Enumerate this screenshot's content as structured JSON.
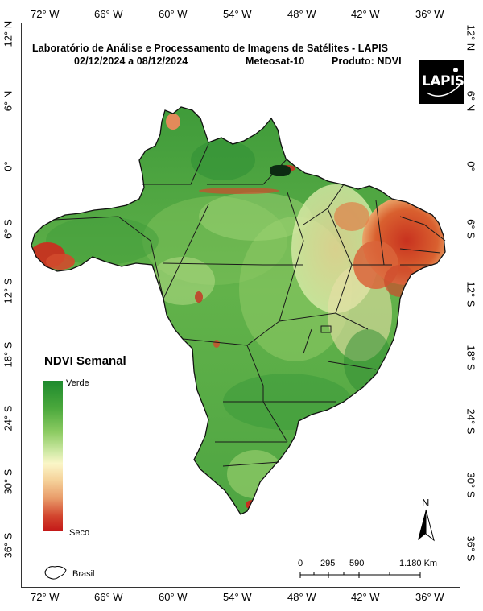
{
  "title": {
    "line1": "Laboratório de Análise e Processamento de Imagens de Satélites - LAPIS",
    "line2_dates": "02/12/2024  a  08/12/2024",
    "line2_sat": "Meteosat-10",
    "line2_product": "Produto: NDVI"
  },
  "logo": {
    "text": "LAPIS"
  },
  "axes": {
    "lon_top": [
      "72° W",
      "66° W",
      "60° W",
      "54° W",
      "48° W",
      "42° W",
      "36° W"
    ],
    "lon_bottom": [
      "72° W",
      "66° W",
      "60° W",
      "54° W",
      "48° W",
      "42° W",
      "36° W"
    ],
    "lat_left": [
      "12° N",
      "6° N",
      "0°",
      "6° S",
      "12° S",
      "18° S",
      "24° S",
      "30° S",
      "36° S"
    ],
    "lat_right": [
      "12° N",
      "6° N",
      "0°",
      "6° S",
      "12° S",
      "18° S",
      "24° S",
      "30° S",
      "36° S"
    ]
  },
  "legend": {
    "title": "NDVI Semanal",
    "top_label": "Verde",
    "bottom_label": "Seco",
    "colors": [
      "#1e8a2e",
      "#8ccb62",
      "#fbf6c8",
      "#e99c6a",
      "#c41818"
    ]
  },
  "north_arrow": {
    "label": "N"
  },
  "scale_bar": {
    "labels": [
      "0",
      "295",
      "590",
      "1.180 Km"
    ]
  },
  "inset": {
    "label": "Brasil"
  }
}
